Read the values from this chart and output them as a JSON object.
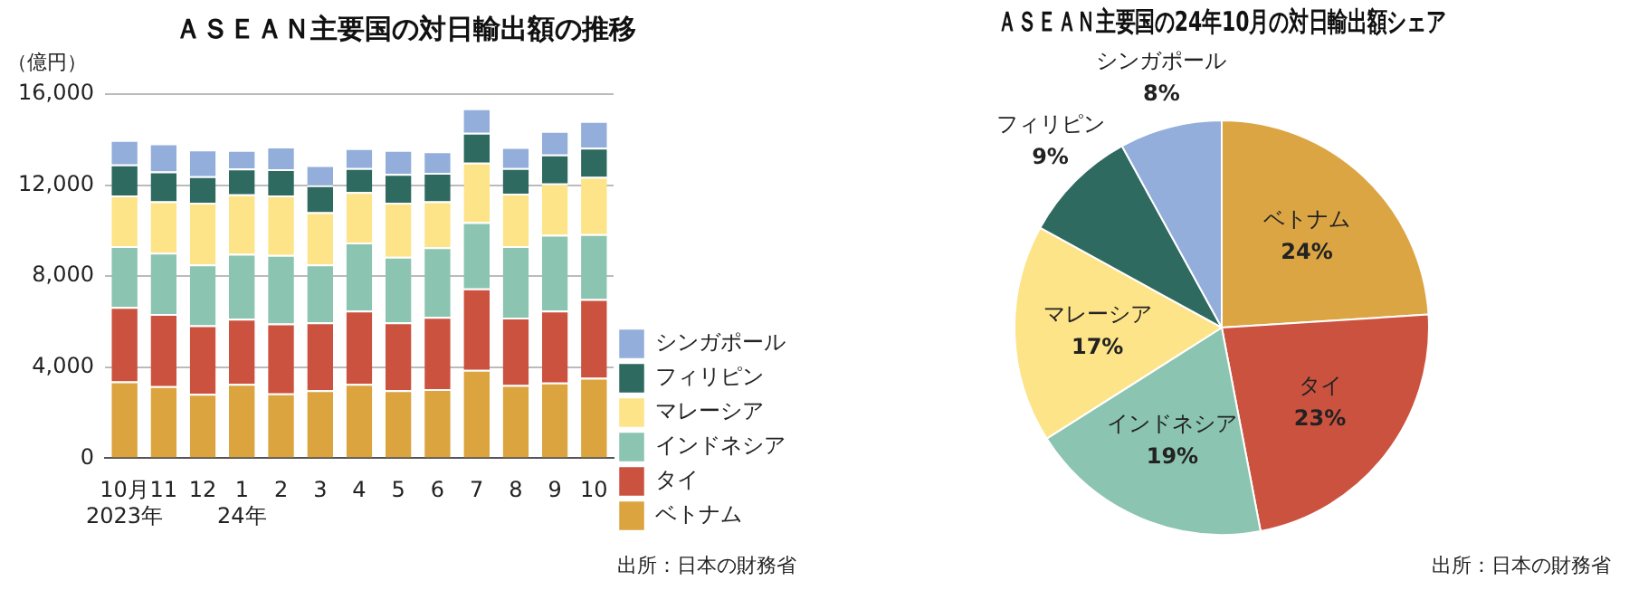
{
  "chart_data": [
    {
      "type": "bar",
      "title": "ＡＳＥＡＮ主要国の対日輸出額の推移",
      "ylabel": "（億円）",
      "stacked": true,
      "categories": [
        "10月\n2023年",
        "11",
        "12",
        "1\n24年",
        "2",
        "3",
        "4",
        "5",
        "6",
        "7",
        "8",
        "9",
        "10"
      ],
      "series": [
        {
          "name": "ベトナム",
          "color": "#dba43f",
          "values": [
            3380,
            3170,
            2830,
            3270,
            2850,
            2990,
            3270,
            2990,
            3040,
            3880,
            3220,
            3330,
            3530
          ]
        },
        {
          "name": "タイ",
          "color": "#cc5240",
          "values": [
            3270,
            3170,
            3010,
            2860,
            3070,
            2980,
            3220,
            2980,
            3170,
            3580,
            2960,
            3160,
            3460
          ]
        },
        {
          "name": "インドネシア",
          "color": "#8bc4b1",
          "values": [
            2670,
            2690,
            2670,
            2850,
            3010,
            2540,
            2990,
            2880,
            3060,
            2910,
            3140,
            3330,
            2860
          ]
        },
        {
          "name": "マレーシア",
          "color": "#fde488",
          "values": [
            2230,
            2260,
            2720,
            2620,
            2620,
            2300,
            2220,
            2380,
            2020,
            2620,
            2310,
            2250,
            2510
          ]
        },
        {
          "name": "フィリピン",
          "color": "#2e6a60",
          "values": [
            1360,
            1310,
            1160,
            1130,
            1150,
            1180,
            1050,
            1260,
            1250,
            1310,
            1120,
            1280,
            1280
          ]
        },
        {
          "name": "シンガポール",
          "color": "#93aedb",
          "values": [
            1070,
            1230,
            1170,
            810,
            990,
            890,
            870,
            1050,
            950,
            1070,
            920,
            1030,
            1180
          ]
        }
      ],
      "ylim": [
        0,
        16000
      ],
      "yticks": [
        {
          "value": 0,
          "label": "0"
        },
        {
          "value": 4000,
          "label": "4,000"
        },
        {
          "value": 8000,
          "label": "8,000"
        },
        {
          "value": 12000,
          "label": "12,000"
        },
        {
          "value": 16000,
          "label": "16,000"
        }
      ],
      "grid": "y",
      "legend": "bottom right",
      "annotations": [
        "出所：日本の財務省"
      ]
    },
    {
      "type": "pie",
      "title": "ＡＳＥＡＮ主要国の24年10月の対日輸出額シェア",
      "categories": [
        "ベトナム",
        "タイ",
        "インドネシア",
        "マレーシア",
        "フィリピン",
        "シンガポール"
      ],
      "values": [
        24,
        23,
        19,
        17,
        9,
        8
      ],
      "value_labels": [
        "24%",
        "23%",
        "19%",
        "17%",
        "9%",
        "8%"
      ],
      "colors": [
        "#dca544",
        "#cc5240",
        "#8bc4b1",
        "#fde488",
        "#2e6a60",
        "#93aedb"
      ],
      "annotations": [
        "出所：日本の財務省"
      ]
    }
  ]
}
